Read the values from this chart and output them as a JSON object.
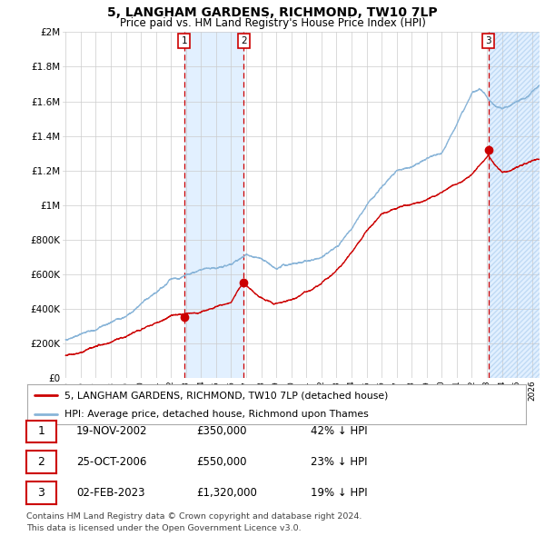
{
  "title": "5, LANGHAM GARDENS, RICHMOND, TW10 7LP",
  "subtitle": "Price paid vs. HM Land Registry's House Price Index (HPI)",
  "x_start_year": 1995,
  "x_end_year": 2026,
  "ylim": [
    0,
    2000000
  ],
  "yticks": [
    0,
    200000,
    400000,
    600000,
    800000,
    1000000,
    1200000,
    1400000,
    1600000,
    1800000,
    2000000
  ],
  "ytick_labels": [
    "£0",
    "£200K",
    "£400K",
    "£600K",
    "£800K",
    "£1M",
    "£1.2M",
    "£1.4M",
    "£1.6M",
    "£1.8M",
    "£2M"
  ],
  "sale1_date": 2002.885,
  "sale1_price": 350000,
  "sale1_label": "1",
  "sale1_display_date": "19-NOV-2002",
  "sale1_display_price": "£350,000",
  "sale1_display_hpi": "42% ↓ HPI",
  "sale2_date": 2006.82,
  "sale2_price": 550000,
  "sale2_label": "2",
  "sale2_display_date": "25-OCT-2006",
  "sale2_display_price": "£550,000",
  "sale2_display_hpi": "23% ↓ HPI",
  "sale3_date": 2023.09,
  "sale3_price": 1320000,
  "sale3_label": "3",
  "sale3_display_date": "02-FEB-2023",
  "sale3_display_price": "£1,320,000",
  "sale3_display_hpi": "19% ↓ HPI",
  "hpi_color": "#88b4d8",
  "sale_color": "#cc0000",
  "shade_color": "#ddeeff",
  "legend_line1": "5, LANGHAM GARDENS, RICHMOND, TW10 7LP (detached house)",
  "legend_line2": "HPI: Average price, detached house, Richmond upon Thames",
  "footer": "Contains HM Land Registry data © Crown copyright and database right 2024.\nThis data is licensed under the Open Government Licence v3.0."
}
